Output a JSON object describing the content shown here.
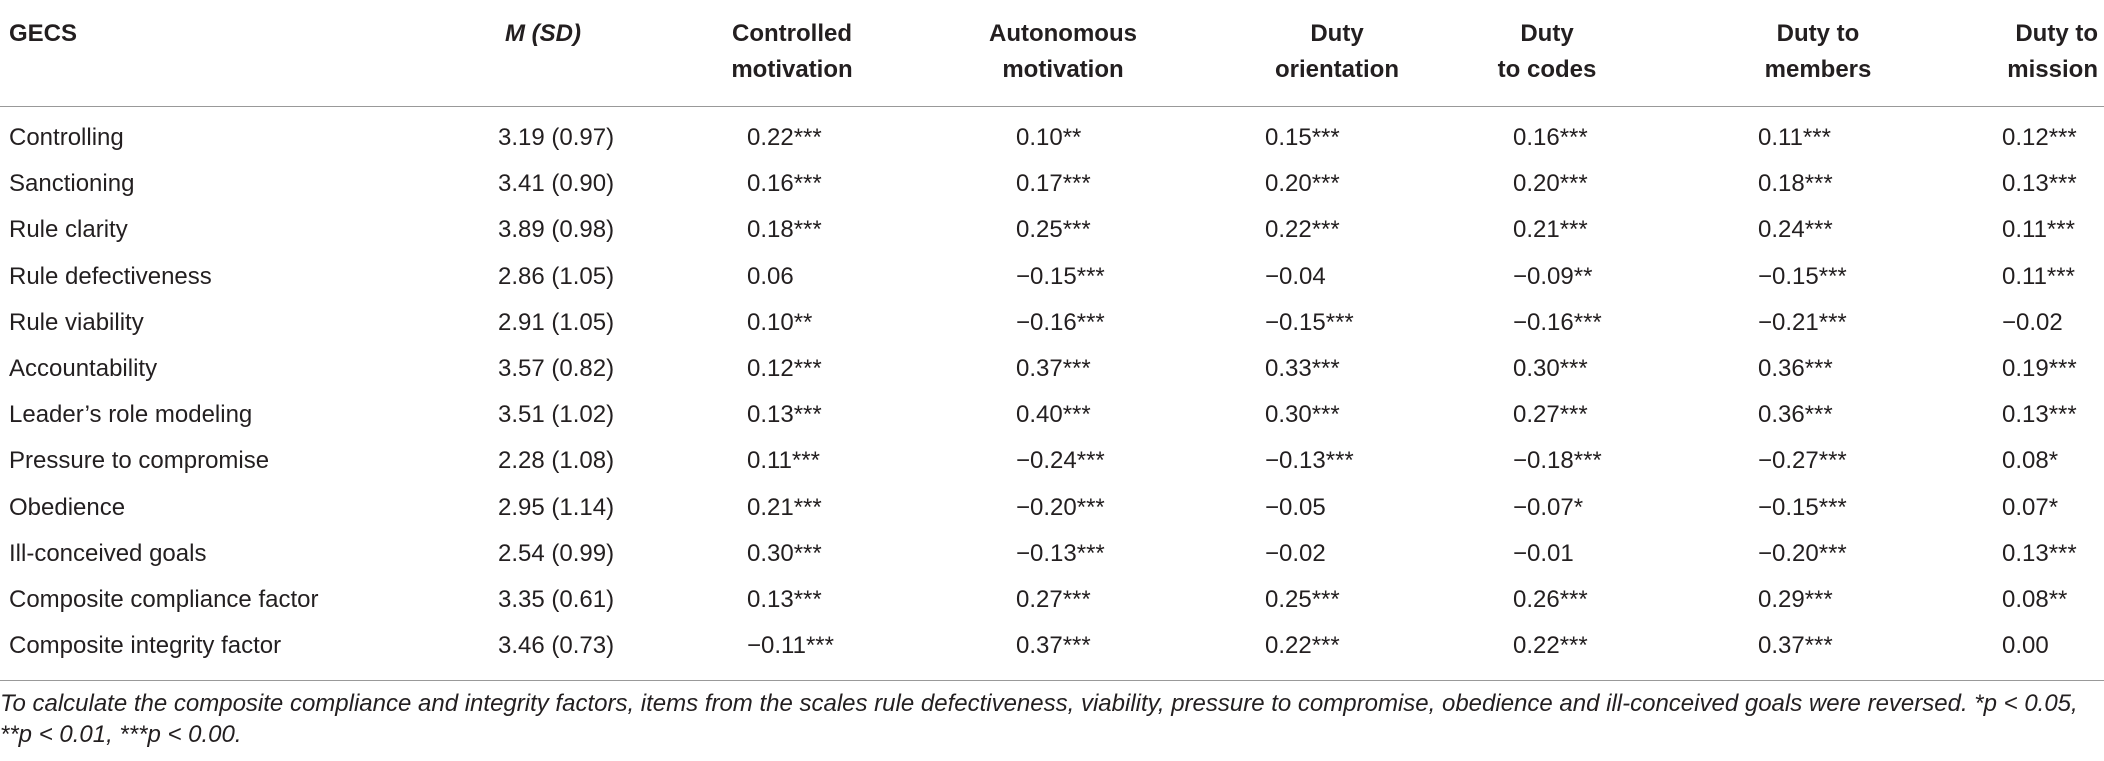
{
  "table": {
    "header": [
      "GECS",
      "M (SD)",
      "Controlled\nmotivation",
      "Autonomous\nmotivation",
      "Duty\norientation",
      "Duty\nto codes",
      "Duty to\nmembers",
      "Duty to\nmission"
    ],
    "rows": [
      [
        "Controlling",
        "3.19 (0.97)",
        "0.22***",
        "0.10**",
        "0.15***",
        "0.16***",
        "0.11***",
        "0.12***"
      ],
      [
        "Sanctioning",
        "3.41 (0.90)",
        "0.16***",
        "0.17***",
        "0.20***",
        "0.20***",
        "0.18***",
        "0.13***"
      ],
      [
        "Rule clarity",
        "3.89 (0.98)",
        "0.18***",
        "0.25***",
        "0.22***",
        "0.21***",
        "0.24***",
        "0.11***"
      ],
      [
        "Rule defectiveness",
        "2.86 (1.05)",
        "0.06",
        "−0.15***",
        "−0.04",
        "−0.09**",
        "−0.15***",
        "0.11***"
      ],
      [
        "Rule viability",
        "2.91 (1.05)",
        "0.10**",
        "−0.16***",
        "−0.15***",
        "−0.16***",
        "−0.21***",
        "−0.02"
      ],
      [
        "Accountability",
        "3.57 (0.82)",
        "0.12***",
        "0.37***",
        "0.33***",
        "0.30***",
        "0.36***",
        "0.19***"
      ],
      [
        "Leader’s role modeling",
        "3.51 (1.02)",
        "0.13***",
        "0.40***",
        "0.30***",
        "0.27***",
        "0.36***",
        "0.13***"
      ],
      [
        "Pressure to compromise",
        "2.28 (1.08)",
        "0.11***",
        "−0.24***",
        "−0.13***",
        "−0.18***",
        "−0.27***",
        "0.08*"
      ],
      [
        "Obedience",
        "2.95 (1.14)",
        "0.21***",
        "−0.20***",
        "−0.05",
        "−0.07*",
        "−0.15***",
        "0.07*"
      ],
      [
        "Ill-conceived goals",
        "2.54 (0.99)",
        "0.30***",
        "−0.13***",
        "−0.02",
        "−0.01",
        "−0.20***",
        "0.13***"
      ],
      [
        "Composite compliance factor",
        "3.35 (0.61)",
        "0.13***",
        "0.27***",
        "0.25***",
        "0.26***",
        "0.29***",
        "0.08**"
      ],
      [
        "Composite integrity factor",
        "3.46 (0.73)",
        "−0.11***",
        "0.37***",
        "0.22***",
        "0.22***",
        "0.37***",
        "0.00"
      ]
    ],
    "footnote": "To calculate the composite compliance and integrity factors, items from the scales rule defectiveness, viability, pressure to compromise, obedience and ill-conceived goals were reversed. *p < 0.05, **p < 0.01, ***p < 0.00."
  }
}
